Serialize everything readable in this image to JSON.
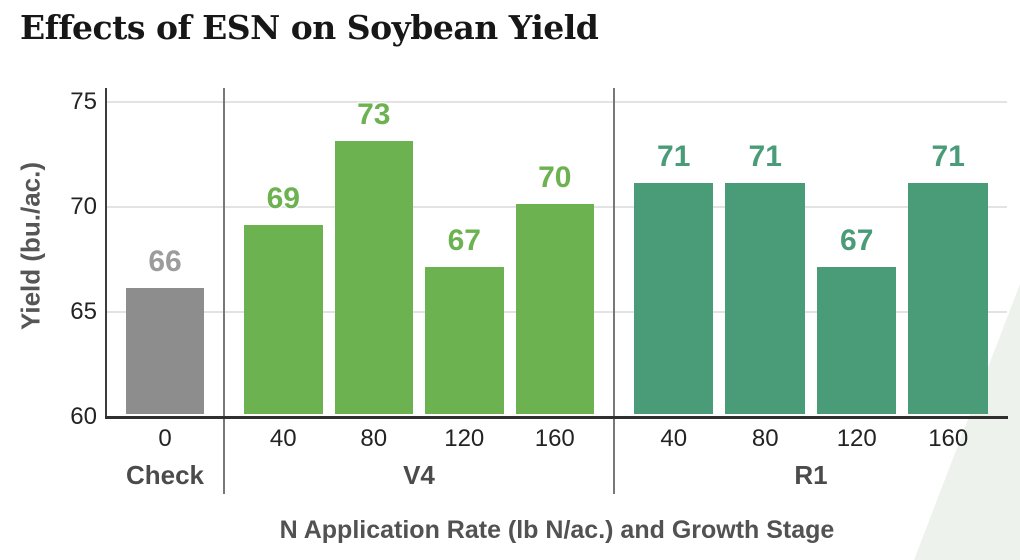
{
  "chart_data": {
    "type": "bar",
    "title": "Effects of ESN on Soybean Yield",
    "xlabel": "N Application Rate (lb N/ac.) and Growth Stage",
    "ylabel": "Yield (bu./ac.)",
    "ylim": [
      60,
      75
    ],
    "yticks": [
      60,
      65,
      70,
      75
    ],
    "grid": true,
    "legend": "none",
    "data_labels_shown": true,
    "groups": [
      {
        "label": "Check",
        "bar_color": "#8d8d8d",
        "value_label_color": "#9c9c9c",
        "categories": [
          "0"
        ],
        "values": [
          66
        ]
      },
      {
        "label": "V4",
        "bar_color": "#6cb251",
        "value_label_color": "#6cb251",
        "categories": [
          "40",
          "80",
          "120",
          "160"
        ],
        "values": [
          69,
          73,
          67,
          70
        ]
      },
      {
        "label": "R1",
        "bar_color": "#4a9b78",
        "value_label_color": "#4a9b78",
        "categories": [
          "40",
          "80",
          "120",
          "160"
        ],
        "values": [
          71,
          71,
          67,
          71
        ]
      }
    ],
    "colors": {
      "background": "#ffffff",
      "accent_shape": "#edf3ec",
      "gridline": "#e3e3e3",
      "axis_line": "#2f2f2f",
      "section_divider": "#787878",
      "tick_text": "#232323",
      "axis_title_text": "#565656",
      "title_text": "#171717"
    }
  }
}
